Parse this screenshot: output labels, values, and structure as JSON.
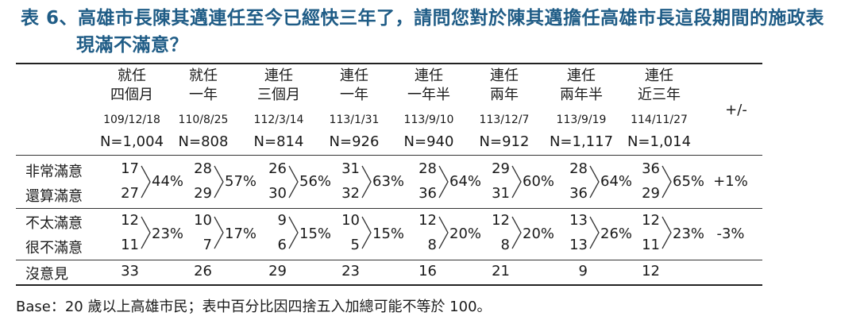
{
  "title": {
    "line1": "表 6、高雄市長陳其邁連任至今已經快三年了，請問您對於陳其邁擔任高雄市長這段期間的施政表",
    "line2": "現滿不滿意？"
  },
  "diff_header": "+/-",
  "columns": [
    {
      "line1": "就任",
      "line2": "四個月",
      "date": "109/12/18",
      "n": "N=1,004"
    },
    {
      "line1": "就任",
      "line2": "一年",
      "date": "110/8/25",
      "n": "N=808"
    },
    {
      "line1": "連任",
      "line2": "三個月",
      "date": "112/3/14",
      "n": "N=814"
    },
    {
      "line1": "連任",
      "line2": "一年",
      "date": "113/1/31",
      "n": "N=926"
    },
    {
      "line1": "連任",
      "line2": "一年半",
      "date": "113/9/10",
      "n": "N=940"
    },
    {
      "line1": "連任",
      "line2": "兩年",
      "date": "113/12/7",
      "n": "N=912"
    },
    {
      "line1": "連任",
      "line2": "兩年半",
      "date": "113/9/19",
      "n": "N=1,117"
    },
    {
      "line1": "連任",
      "line2": "近三年",
      "date": "114/11/27",
      "n": "N=1,014"
    }
  ],
  "rows": {
    "very_satisfied": {
      "label": "非常滿意",
      "values": [
        "17",
        "28",
        "26",
        "31",
        "28",
        "29",
        "28",
        "36"
      ]
    },
    "somewhat_satisfied": {
      "label": "還算滿意",
      "values": [
        "27",
        "29",
        "30",
        "32",
        "36",
        "31",
        "36",
        "29"
      ]
    },
    "satisfied_total": [
      "44%",
      "57%",
      "56%",
      "63%",
      "64%",
      "60%",
      "64%",
      "65%"
    ],
    "satisfied_diff": "+1%",
    "not_very_satisfied": {
      "label": "不太滿意",
      "values": [
        "12",
        "10",
        "9",
        "10",
        "12",
        "12",
        "13",
        "12"
      ]
    },
    "very_unsatisfied": {
      "label": "很不滿意",
      "values": [
        "11",
        "7",
        "6",
        "5",
        "8",
        "8",
        "13",
        "11"
      ]
    },
    "unsatisfied_total": [
      "23%",
      "17%",
      "15%",
      "15%",
      "20%",
      "20%",
      "26%",
      "23%"
    ],
    "unsatisfied_diff": "-3%",
    "no_opinion": {
      "label": "沒意見",
      "values": [
        "33",
        "26",
        "29",
        "23",
        "16",
        "21",
        "9",
        "12"
      ]
    }
  },
  "footnote": "Base：20 歲以上高雄市民；表中百分比因四捨五入加總可能不等於 100。"
}
